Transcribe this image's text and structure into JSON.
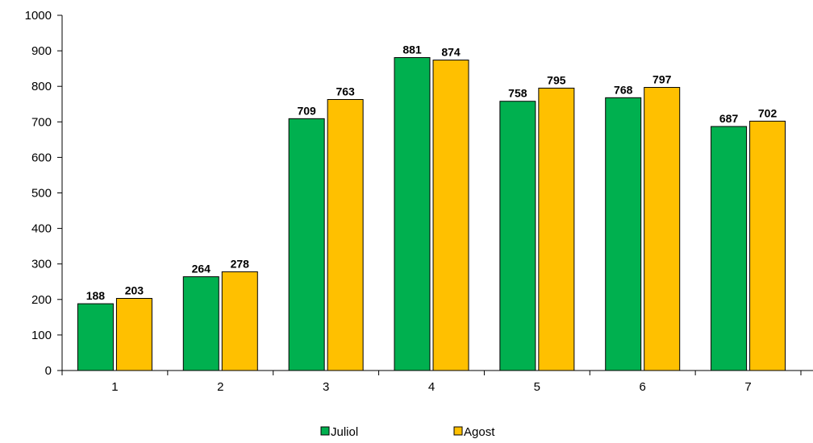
{
  "chart_data": {
    "type": "bar",
    "categories": [
      "1",
      "2",
      "3",
      "4",
      "5",
      "6",
      "7"
    ],
    "series": [
      {
        "name": "Juliol",
        "values": [
          188,
          264,
          709,
          881,
          758,
          768,
          687
        ],
        "color": "#00b04f"
      },
      {
        "name": "Agost",
        "values": [
          203,
          278,
          763,
          874,
          795,
          797,
          702
        ],
        "color": "#ffc000"
      }
    ],
    "ylim": [
      0,
      1000
    ],
    "yticks": [
      0,
      100,
      200,
      300,
      400,
      500,
      600,
      700,
      800,
      900,
      1000
    ],
    "title": "",
    "xlabel": "",
    "ylabel": "",
    "grid": false,
    "legend_position": "bottom"
  }
}
